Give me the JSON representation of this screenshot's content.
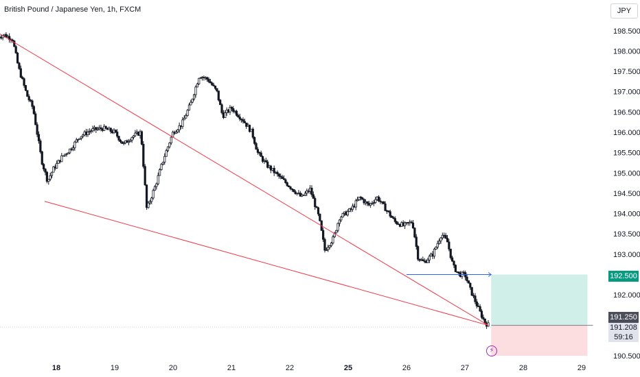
{
  "header": {
    "title": "British Pound / Japanese Yen, 1h, FXCM",
    "currency": "JPY"
  },
  "colors": {
    "up": "#131722",
    "down": "#131722",
    "trendline": "#f23645",
    "target_line": "#2962ff",
    "profit_zone": "#d1efe9",
    "loss_zone": "#fcdde0",
    "green_tag": "#089981",
    "dark_tag": "#4a4e5a"
  },
  "chart_data": {
    "type": "candlestick",
    "ylim": [
      190.45,
      198.75
    ],
    "y_ticks": [
      "198.500",
      "198.000",
      "197.500",
      "197.000",
      "196.500",
      "196.000",
      "195.500",
      "195.000",
      "194.500",
      "194.000",
      "193.500",
      "193.000",
      "192.000",
      "190.500"
    ],
    "y_tick_values": [
      198.5,
      198.0,
      197.5,
      197.0,
      196.5,
      196.0,
      195.5,
      195.0,
      194.5,
      194.0,
      193.5,
      193.0,
      192.0,
      190.5
    ],
    "x_ticks": [
      {
        "label": "18",
        "bold": true,
        "day": 18
      },
      {
        "label": "19",
        "bold": false,
        "day": 19
      },
      {
        "label": "20",
        "bold": false,
        "day": 20
      },
      {
        "label": "21",
        "bold": false,
        "day": 21
      },
      {
        "label": "22",
        "bold": false,
        "day": 22
      },
      {
        "label": "25",
        "bold": true,
        "day": 25
      },
      {
        "label": "26",
        "bold": false,
        "day": 26
      },
      {
        "label": "27",
        "bold": false,
        "day": 27
      },
      {
        "label": "28",
        "bold": false,
        "day": 28
      },
      {
        "label": "29",
        "bold": false,
        "day": 29
      }
    ],
    "price_path": [
      [
        17.0,
        198.35
      ],
      [
        17.1,
        198.4
      ],
      [
        17.25,
        198.3
      ],
      [
        17.35,
        197.6
      ],
      [
        17.5,
        196.9
      ],
      [
        17.6,
        196.6
      ],
      [
        17.75,
        195.3
      ],
      [
        17.85,
        194.8
      ],
      [
        17.95,
        195.1
      ],
      [
        18.1,
        195.4
      ],
      [
        18.25,
        195.6
      ],
      [
        18.4,
        195.9
      ],
      [
        18.6,
        196.05
      ],
      [
        18.8,
        196.1
      ],
      [
        19.0,
        196.0
      ],
      [
        19.15,
        195.7
      ],
      [
        19.3,
        195.9
      ],
      [
        19.45,
        196.0
      ],
      [
        19.55,
        194.1
      ],
      [
        19.7,
        194.7
      ],
      [
        19.85,
        195.4
      ],
      [
        20.0,
        196.0
      ],
      [
        20.15,
        196.2
      ],
      [
        20.3,
        196.7
      ],
      [
        20.45,
        197.4
      ],
      [
        20.6,
        197.3
      ],
      [
        20.75,
        197.0
      ],
      [
        20.85,
        196.4
      ],
      [
        21.0,
        196.6
      ],
      [
        21.2,
        196.3
      ],
      [
        21.35,
        196.0
      ],
      [
        21.45,
        195.5
      ],
      [
        21.6,
        195.2
      ],
      [
        21.75,
        195.0
      ],
      [
        21.9,
        194.8
      ],
      [
        22.05,
        194.6
      ],
      [
        22.2,
        194.4
      ],
      [
        22.35,
        194.6
      ],
      [
        22.5,
        193.9
      ],
      [
        22.6,
        193.1
      ],
      [
        22.75,
        193.4
      ],
      [
        22.85,
        193.9
      ],
      [
        23.05,
        194.1
      ],
      [
        23.2,
        194.4
      ],
      [
        23.35,
        194.2
      ],
      [
        23.5,
        194.4
      ],
      [
        23.65,
        194.1
      ],
      [
        23.8,
        193.8
      ],
      [
        23.95,
        193.7
      ],
      [
        24.1,
        193.8
      ],
      [
        24.2,
        192.9
      ],
      [
        24.3,
        192.8
      ],
      [
        24.45,
        193.0
      ],
      [
        24.6,
        193.5
      ],
      [
        24.7,
        193.3
      ],
      [
        24.8,
        192.7
      ],
      [
        24.9,
        192.5
      ],
      [
        25.0,
        192.5
      ],
      [
        25.1,
        192.1
      ],
      [
        25.25,
        191.6
      ],
      [
        25.35,
        191.3
      ],
      [
        25.42,
        191.25
      ]
    ],
    "trendlines": [
      {
        "x1": 17.0,
        "y1": 198.45,
        "x2": 25.4,
        "y2": 191.25
      },
      {
        "x1": 17.8,
        "y1": 194.3,
        "x2": 25.4,
        "y2": 191.25
      }
    ],
    "target_line": {
      "x1": 24.0,
      "x2": 25.45,
      "y": 192.5
    },
    "position": {
      "entry": 191.25,
      "target": 192.5,
      "stop": 190.5,
      "x_start": 25.45,
      "x_end": 27.1
    }
  },
  "price_labels": {
    "target": "192.500",
    "entry": "191.250",
    "last": "191.208",
    "countdown": "59:16"
  },
  "icons": {
    "alert": "lightning-icon"
  }
}
